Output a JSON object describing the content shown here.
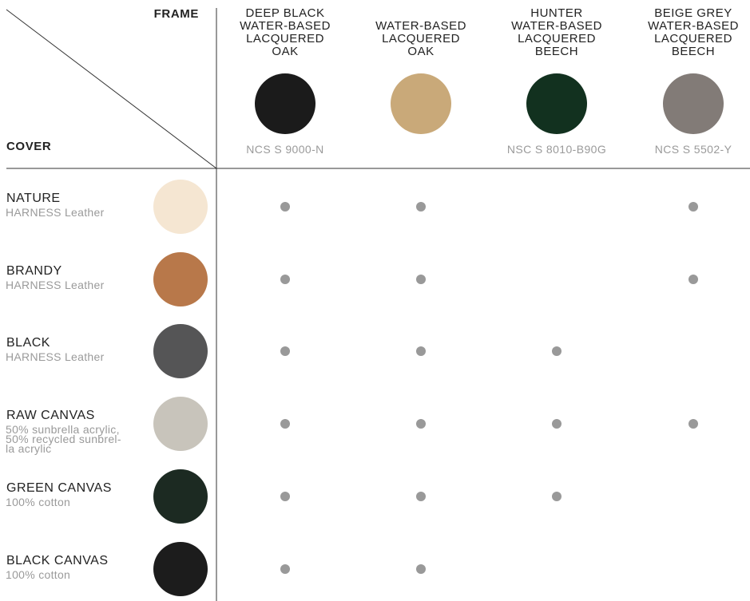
{
  "frame_label": "FRAME",
  "cover_label": "COVER",
  "columns": [
    {
      "lines": [
        "DEEP BLACK",
        "WATER-BASED",
        "LACQUERED",
        "OAK"
      ],
      "color": "#1b1b1b",
      "code": "NCS S 9000-N"
    },
    {
      "lines": [
        "WATER-BASED",
        "LACQUERED",
        "OAK"
      ],
      "color": "#c9a979"
    },
    {
      "lines": [
        "HUNTER",
        "WATER-BASED",
        "LACQUERED",
        "BEECH"
      ],
      "color": "#12311f",
      "code": "NSC S 8010-B90G"
    },
    {
      "lines": [
        "BEIGE GREY",
        "WATER-BASED",
        "LACQUERED",
        "BEECH"
      ],
      "color": "#827b77",
      "code": "NCS S 5502-Y"
    }
  ],
  "rows": [
    {
      "name": "NATURE",
      "description": [
        "HARNESS Leather"
      ],
      "color": "#f5e6d2",
      "available": [
        true,
        true,
        false,
        true
      ]
    },
    {
      "name": "BRANDY",
      "description": [
        "HARNESS Leather"
      ],
      "color": "#b8784a",
      "available": [
        true,
        true,
        false,
        true
      ]
    },
    {
      "name": "BLACK",
      "description": [
        "HARNESS Leather"
      ],
      "color": "#555556",
      "available": [
        true,
        true,
        true,
        false
      ]
    },
    {
      "name": "RAW CANVAS",
      "description": [
        "50% sunbrella acrylic,",
        "50% recycled sunbrel-",
        "la acrylic"
      ],
      "color": "#c8c4bb",
      "available": [
        true,
        true,
        true,
        true
      ]
    },
    {
      "name": "GREEN CANVAS",
      "description": [
        "100% cotton"
      ],
      "color": "#1c2a22",
      "available": [
        true,
        true,
        true,
        false
      ]
    },
    {
      "name": "BLACK CANVAS",
      "description": [
        "100% cotton"
      ],
      "color": "#1c1c1c",
      "available": [
        true,
        true,
        false,
        false
      ]
    }
  ]
}
